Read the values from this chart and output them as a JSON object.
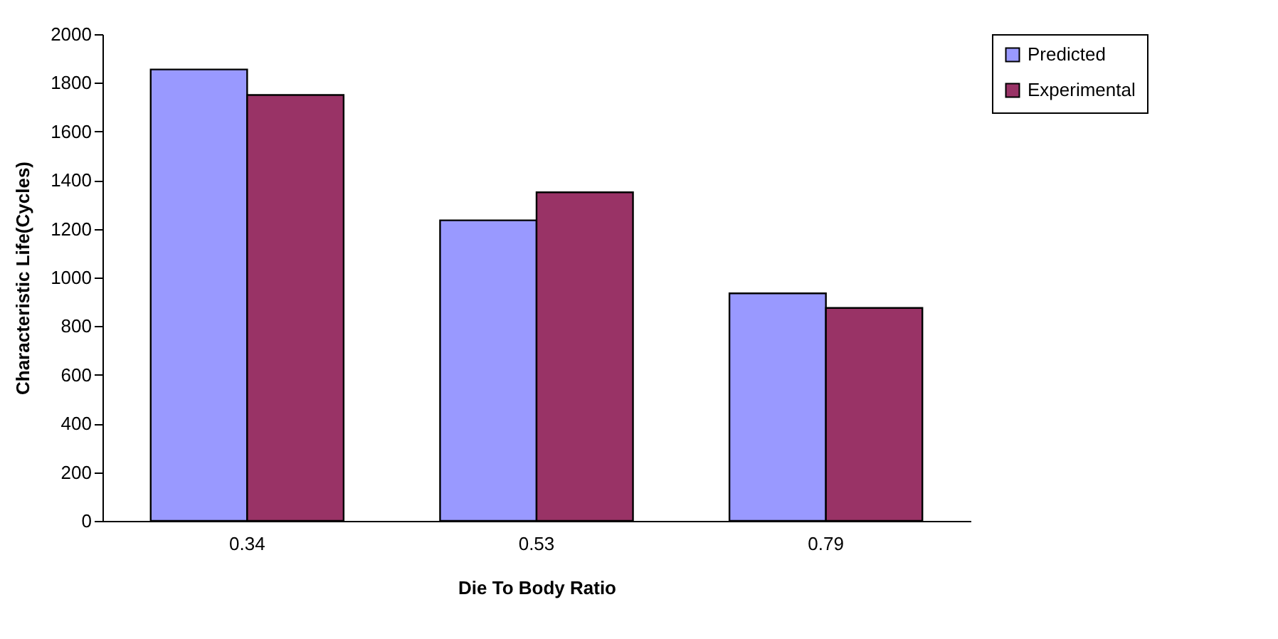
{
  "chart_data": {
    "type": "bar",
    "xlabel": "Die To Body Ratio",
    "ylabel": "Characteristic Life(Cycles)",
    "categories": [
      "0.34",
      "0.53",
      "0.79"
    ],
    "series": [
      {
        "name": "Predicted",
        "color": "#9999ff",
        "values": [
          1855,
          1235,
          935
        ]
      },
      {
        "name": "Experimental",
        "color": "#993366",
        "values": [
          1750,
          1350,
          875
        ]
      }
    ],
    "ylim": [
      0,
      2000
    ],
    "yticks": [
      0,
      200,
      400,
      600,
      800,
      1000,
      1200,
      1400,
      1600,
      1800,
      2000
    ],
    "grid": false,
    "legend": "right"
  }
}
